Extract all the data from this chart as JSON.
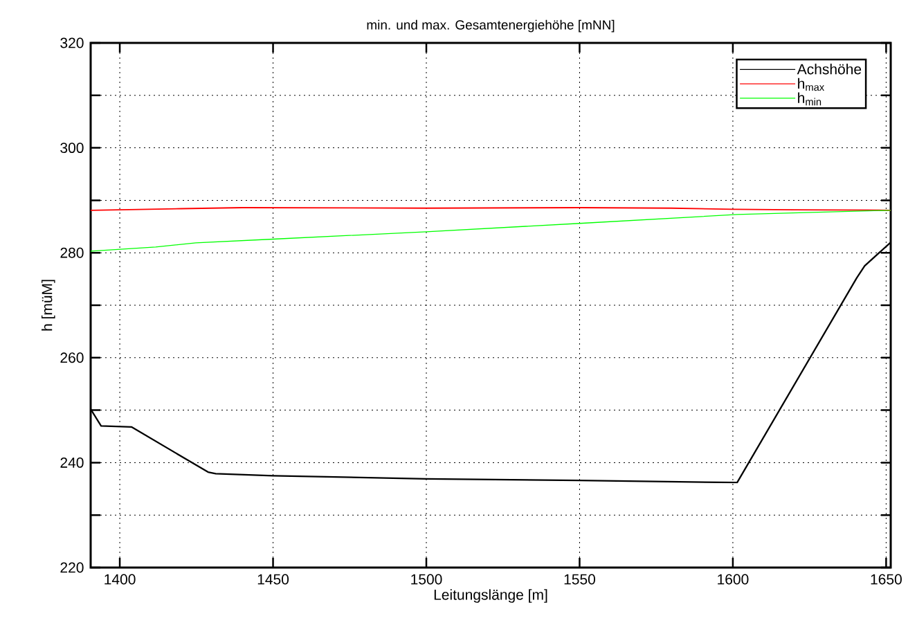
{
  "chart_data": {
    "type": "line",
    "title": "min. und max. Gesamtenergiehöhe [mNN]",
    "xlabel": "Leitungslänge [m]",
    "ylabel": "h [müM]",
    "xlim": [
      1390.5,
      1651.5
    ],
    "xticks": [
      1400,
      1450,
      1500,
      1550,
      1600,
      1650
    ],
    "ylim": [
      220,
      320
    ],
    "yticks": [
      220,
      {
        "value": 230,
        "label": null
      },
      240,
      {
        "value": 250,
        "label": null
      },
      260,
      {
        "value": 270,
        "label": null
      },
      280,
      {
        "value": 290,
        "label": null
      },
      300,
      {
        "value": 310,
        "label": null
      },
      320
    ],
    "grid": true,
    "legend": "top right",
    "marker": "none",
    "line_style": "solid",
    "series": [
      {
        "name": "Achshöhe",
        "color": "#000000",
        "x": [
          1390.5,
          1393.9,
          1403.8,
          1428.8,
          1431.3,
          1450,
          1500,
          1550,
          1601.4,
          1640.4,
          1643.0,
          1651.5
        ],
        "values": [
          250.2,
          247.0,
          246.8,
          238.2,
          237.9,
          237.5,
          236.9,
          236.6,
          236.2,
          275.2,
          277.5,
          282.0
        ]
      },
      {
        "name": "h$_{max}$",
        "color": "#ff0000",
        "x": [
          1390.5,
          1420,
          1440,
          1500,
          1550,
          1580,
          1600,
          1620,
          1651.5
        ],
        "values": [
          288.1,
          288.4,
          288.6,
          288.5,
          288.6,
          288.5,
          288.3,
          288.2,
          288.1
        ]
      },
      {
        "name": "h$_{min}$",
        "color": "#00ff00",
        "x": [
          1390.5,
          1411.7,
          1424.8,
          1450,
          1500,
          1550,
          1601.4,
          1651.5
        ],
        "values": [
          280.3,
          281.1,
          281.9,
          282.6,
          284.0,
          285.6,
          287.3,
          288.1
        ]
      }
    ]
  }
}
